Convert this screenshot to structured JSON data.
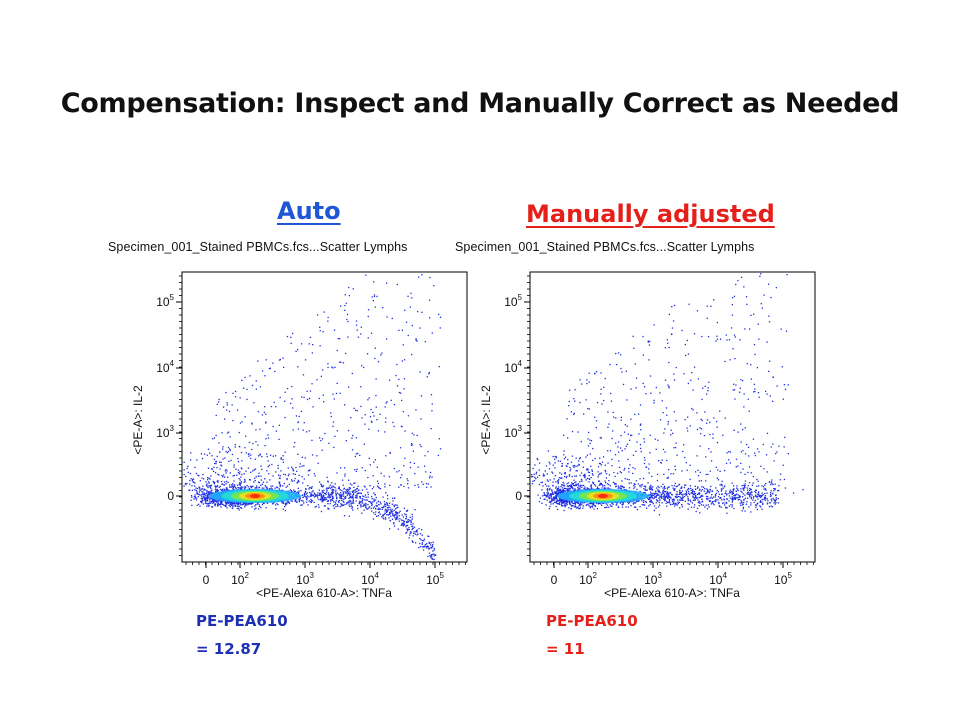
{
  "slide": {
    "title": "Compensation: Inspect and Manually Correct as Needed"
  },
  "panels": [
    {
      "label": "Auto",
      "label_color": "#1f56d6",
      "filename": "Specimen_001_Stained PBMCs.fcs...Scatter Lymphs",
      "xlabel": "<PE-Alexa 610-A>: TNFa",
      "ylabel": "<PE-A>: IL-2",
      "comp_label": "PE-PEA610",
      "comp_value": "= 12.87",
      "value_color": "#1f2fb5"
    },
    {
      "label": "Manually adjusted",
      "label_color": "#e5201a",
      "filename": "Specimen_001_Stained PBMCs.fcs...Scatter Lymphs",
      "xlabel": "<PE-Alexa 610-A>: TNFa",
      "ylabel": "<PE-A>: IL-2",
      "comp_label": "PE-PEA610",
      "comp_value": "= 11",
      "value_color": "#e5201a"
    }
  ],
  "axes": {
    "x_ticks": [
      {
        "base": "0",
        "exp": ""
      },
      {
        "base": "10",
        "exp": "2"
      },
      {
        "base": "10",
        "exp": "3"
      },
      {
        "base": "10",
        "exp": "4"
      },
      {
        "base": "10",
        "exp": "5"
      }
    ],
    "y_ticks": [
      {
        "base": "0",
        "exp": ""
      },
      {
        "base": "10",
        "exp": "3"
      },
      {
        "base": "10",
        "exp": "4"
      },
      {
        "base": "10",
        "exp": "5"
      }
    ]
  },
  "chart_data": [
    {
      "type": "scatter",
      "title": "Specimen_001_Stained PBMCs.fcs...Scatter Lymphs",
      "xlabel": "<PE-Alexa 610-A>: TNFa",
      "ylabel": "<PE-A>: IL-2",
      "x_scale": "biexponential",
      "y_scale": "biexponential",
      "xlim": [
        -100,
        200000
      ],
      "ylim": [
        -1500,
        200000
      ],
      "x_ticks": [
        "0",
        "10^2",
        "10^3",
        "10^4",
        "10^5"
      ],
      "y_ticks": [
        "0",
        "10^3",
        "10^4",
        "10^5"
      ],
      "density_peak": {
        "x": 150,
        "y": 0
      },
      "main_population": {
        "x_range": [
          -100,
          10000
        ],
        "y_range": [
          -300,
          700
        ]
      },
      "compensation_artifact": "high TNFa events bend downward below zero on IL-2 (overcompensation)",
      "scatter_range_upper": {
        "x_range": [
          1000,
          150000
        ],
        "y_range": [
          1000,
          100000
        ]
      },
      "spillover_value": 12.87
    },
    {
      "type": "scatter",
      "title": "Specimen_001_Stained PBMCs.fcs...Scatter Lymphs",
      "xlabel": "<PE-Alexa 610-A>: TNFa",
      "ylabel": "<PE-A>: IL-2",
      "x_scale": "biexponential",
      "y_scale": "biexponential",
      "xlim": [
        -100,
        200000
      ],
      "ylim": [
        -1500,
        200000
      ],
      "x_ticks": [
        "0",
        "10^2",
        "10^3",
        "10^4",
        "10^5"
      ],
      "y_ticks": [
        "0",
        "10^3",
        "10^4",
        "10^5"
      ],
      "density_peak": {
        "x": 150,
        "y": 0
      },
      "main_population": {
        "x_range": [
          -100,
          70000
        ],
        "y_range": [
          -300,
          700
        ]
      },
      "compensation_artifact": "population stays flat near zero IL-2 across TNFa",
      "scatter_range_upper": {
        "x_range": [
          1000,
          150000
        ],
        "y_range": [
          1000,
          100000
        ]
      },
      "spillover_value": 11
    }
  ]
}
